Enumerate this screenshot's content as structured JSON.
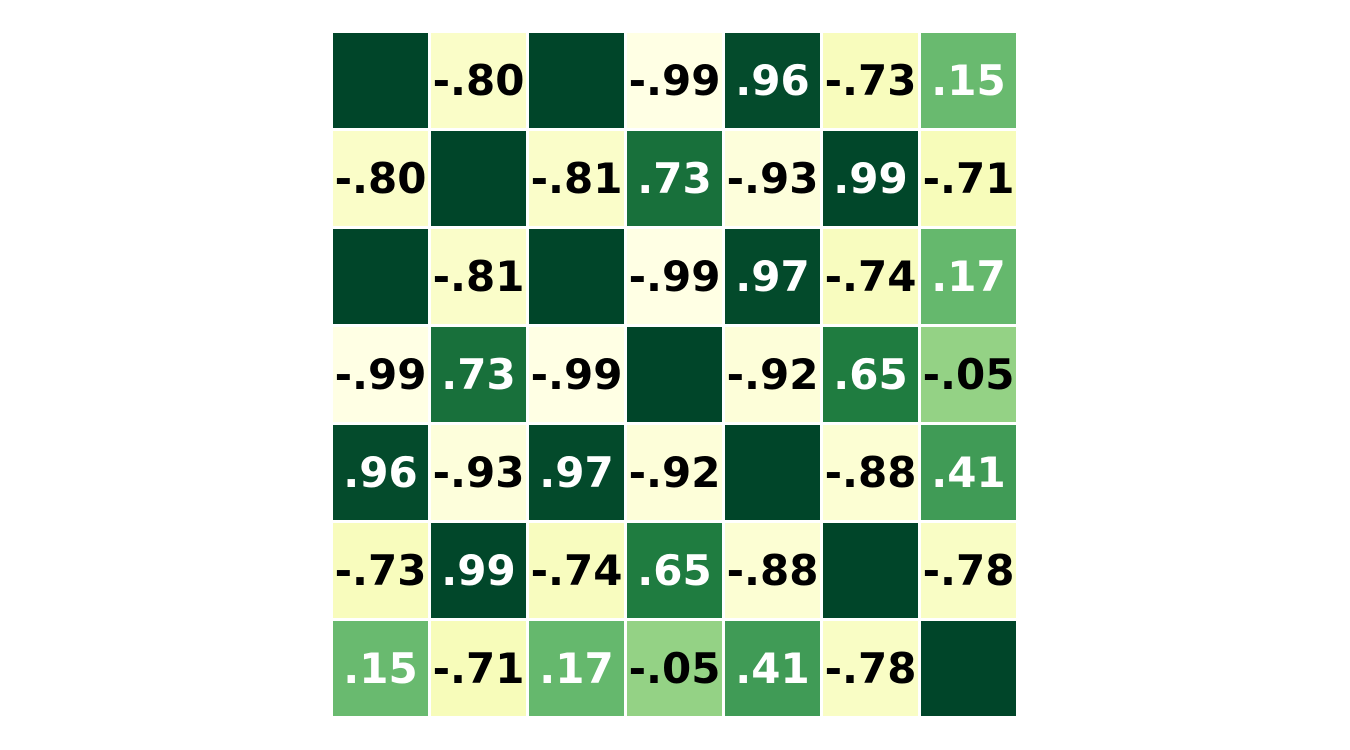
{
  "chart_data": {
    "type": "heatmap",
    "title": "",
    "xlabel": "",
    "ylabel": "",
    "grid": false,
    "legend": "none",
    "color_scale": "yellow-green",
    "value_range": [
      -1,
      1
    ],
    "rows": 7,
    "cols": 7,
    "values": [
      [
        1.0,
        -0.8,
        1.0,
        -0.99,
        0.96,
        -0.73,
        0.15
      ],
      [
        -0.8,
        1.0,
        -0.81,
        0.73,
        -0.93,
        0.99,
        -0.71
      ],
      [
        1.0,
        -0.81,
        1.0,
        -0.99,
        0.97,
        -0.74,
        0.17
      ],
      [
        -0.99,
        0.73,
        -0.99,
        1.0,
        -0.92,
        0.65,
        -0.05
      ],
      [
        0.96,
        -0.93,
        0.97,
        -0.92,
        1.0,
        -0.88,
        0.41
      ],
      [
        -0.73,
        0.99,
        -0.74,
        0.65,
        -0.88,
        1.0,
        -0.78
      ],
      [
        0.15,
        -0.71,
        0.17,
        -0.05,
        0.41,
        -0.78,
        1.0
      ]
    ],
    "labels": [
      [
        "",
        "-.80",
        "",
        "-.99",
        ".96",
        "-.73",
        ".15"
      ],
      [
        "-.80",
        "",
        "-.81",
        ".73",
        "-.93",
        ".99",
        "-.71"
      ],
      [
        "",
        "-.81",
        "",
        "-.99",
        ".97",
        "-.74",
        ".17"
      ],
      [
        "-.99",
        ".73",
        "-.99",
        "",
        "-.92",
        ".65",
        "-.05"
      ],
      [
        ".96",
        "-.93",
        ".97",
        "-.92",
        "",
        "-.88",
        ".41"
      ],
      [
        "-.73",
        ".99",
        "-.74",
        ".65",
        "-.88",
        "",
        "-.78"
      ],
      [
        ".15",
        "-.71",
        ".17",
        "-.05",
        ".41",
        "-.78",
        ""
      ]
    ],
    "colors": {
      "low": "#ffffe5",
      "mid_low": "#f7fcb9",
      "mid": "#d9f0a3",
      "mid_high": "#78c679",
      "high": "#238443",
      "max": "#004529",
      "text_dark": "#000000",
      "text_light": "#ffffff"
    }
  }
}
